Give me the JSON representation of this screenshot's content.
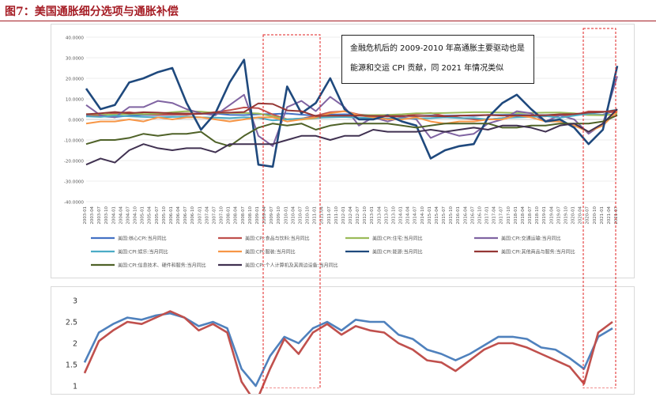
{
  "page_title": "图7：美国通胀细分选项与通胀补偿",
  "annotation": {
    "line1": "金融危机后的 2009-2010 年高通胀主要驱动也是",
    "line2": "能源和交运 CPI 贡献，同 2021 年情况类似"
  },
  "chart_data": [
    {
      "type": "line",
      "y_ticks": [
        "40.0000",
        "30.0000",
        "20.0000",
        "10.0000",
        "0.0000",
        "-10.0000",
        "-20.0000",
        "-30.0000",
        "-40.0000"
      ],
      "ylim": [
        -40,
        40
      ],
      "x_ticks": [
        "2003-01",
        "2003-07",
        "2004-01",
        "2004-07",
        "2005-01",
        "2005-07",
        "2006-01",
        "2006-07",
        "2007-01",
        "2007-07",
        "2008-01",
        "2008-07",
        "2009-01",
        "2009-07",
        "2010-01",
        "2010-07",
        "2011-01",
        "2011-07",
        "2012-01",
        "2012-07",
        "2013-01",
        "2013-07",
        "2014-01",
        "2014-07",
        "2015-01",
        "2015-07",
        "2016-01",
        "2016-07",
        "2017-01",
        "2017-07",
        "2018-01",
        "2018-07",
        "2019-01",
        "2019-07",
        "2020-01",
        "2020-07",
        "2021-01",
        "2021-07"
      ],
      "x_tick_labels": [
        "2003-01",
        "2003-04",
        "2003-07",
        "2003-10",
        "2004-01",
        "2004-04",
        "2004-07",
        "2004-10",
        "2005-01",
        "2005-04",
        "2005-07",
        "2005-10",
        "2006-01",
        "2006-04",
        "2006-07",
        "2006-10",
        "2007-01",
        "2007-04",
        "2007-07",
        "2007-10",
        "2008-01",
        "2008-04",
        "2008-07",
        "2008-10",
        "2009-01",
        "2009-04",
        "2009-07",
        "2009-10",
        "2010-01",
        "2010-04",
        "2010-07",
        "2010-10",
        "2011-01",
        "2011-04",
        "2011-07",
        "2011-10",
        "2012-01",
        "2012-04",
        "2012-07",
        "2012-10",
        "2013-01",
        "2013-04",
        "2013-07",
        "2013-10",
        "2014-01",
        "2014-04",
        "2014-07",
        "2014-10",
        "2015-01",
        "2015-04",
        "2015-07",
        "2015-10",
        "2016-01",
        "2016-04",
        "2016-07",
        "2016-10",
        "2017-01",
        "2017-04",
        "2017-07",
        "2017-10",
        "2018-01",
        "2018-04",
        "2018-07",
        "2018-10",
        "2019-01",
        "2019-04",
        "2019-07",
        "2019-10",
        "2020-01",
        "2020-04",
        "2020-07",
        "2020-10",
        "2021-01",
        "2021-04",
        "2021-07"
      ],
      "highlight_ranges": [
        [
          "2009-01",
          "2010-07"
        ],
        [
          "2020-07",
          "2021-07"
        ]
      ],
      "series": [
        {
          "name": "美国:核心CPI:当月同比",
          "color": "#4472c4",
          "values": [
            1.9,
            1.5,
            1.1,
            1.9,
            2.2,
            2.1,
            2.2,
            2.5,
            2.7,
            2.9,
            2.2,
            2.1,
            2.5,
            2.6,
            2.9,
            2.3,
            1.8,
            2.3,
            2.5,
            2.3,
            2.0,
            1.8,
            1.7,
            1.6,
            1.9,
            1.8,
            1.9,
            1.7,
            2.2,
            2.2,
            2.3,
            2.1,
            2.1,
            2.3,
            2.4,
            2.2,
            2.3,
            4.5
          ]
        },
        {
          "name": "美国:CPI:食品与饮料:当月同比",
          "color": "#c0504d",
          "values": [
            1.5,
            2.0,
            3.0,
            3.5,
            2.6,
            2.3,
            2.4,
            2.3,
            2.8,
            3.6,
            4.5,
            5.8,
            5.5,
            2.4,
            0.1,
            0.4,
            1.8,
            3.5,
            4.0,
            2.4,
            1.6,
            1.4,
            1.4,
            2.6,
            3.1,
            1.6,
            0.8,
            0.0,
            0.0,
            0.6,
            1.3,
            1.4,
            1.5,
            1.9,
            2.0,
            3.9,
            3.8,
            3.4
          ]
        },
        {
          "name": "美国:CPI:住宅:当月同比",
          "color": "#9bbb59",
          "values": [
            2.6,
            2.4,
            2.3,
            2.7,
            2.6,
            2.8,
            3.5,
            4.0,
            3.8,
            3.2,
            3.1,
            3.2,
            2.9,
            1.5,
            0.1,
            -0.1,
            0.6,
            1.3,
            1.7,
            2.0,
            2.1,
            2.2,
            2.5,
            3.0,
            3.0,
            3.1,
            3.3,
            3.5,
            3.5,
            3.3,
            3.1,
            3.2,
            3.3,
            3.4,
            3.0,
            2.1,
            2.0,
            2.6
          ]
        },
        {
          "name": "美国:CPI:交通运输:当月同比",
          "color": "#8064a2",
          "values": [
            7,
            2,
            1,
            6,
            6,
            9,
            8,
            5,
            3,
            2,
            7,
            12,
            -8,
            -13,
            6,
            9,
            4,
            11,
            6,
            -3,
            1,
            -1,
            1,
            0,
            -9,
            -6,
            -8,
            -7,
            -2,
            0,
            4,
            3,
            -1,
            2,
            0,
            -7,
            -2,
            21
          ]
        },
        {
          "name": "美国:CPI:娱乐:当月同比",
          "color": "#4bacc6",
          "values": [
            1.5,
            1.2,
            1.8,
            1.5,
            1.2,
            1.0,
            1.2,
            1.4,
            1.0,
            0.9,
            0.6,
            1.0,
            0.8,
            -0.5,
            0.0,
            0.5,
            0.8,
            1.0,
            1.2,
            0.8,
            0.7,
            0.4,
            0.5,
            0.5,
            0.6,
            1.0,
            0.7,
            0.6,
            0.0,
            0.6,
            1.0,
            1.2,
            1.6,
            0.8,
            1.8,
            2.8,
            3.5,
            4.8
          ]
        },
        {
          "name": "美国:CPI:服装:当月同比",
          "color": "#f79646",
          "values": [
            -2,
            -1,
            -1,
            0,
            -1,
            1,
            0,
            1,
            1,
            0,
            -1,
            0,
            1,
            1,
            -1,
            0,
            1,
            3,
            4,
            2,
            1,
            0,
            0,
            1,
            -1,
            -2,
            -1,
            -1,
            0,
            0,
            2,
            1,
            -1,
            -1,
            -3,
            -6,
            -3,
            4
          ]
        },
        {
          "name": "美国:CPI:能源:当月同比",
          "color": "#1f497d",
          "values": [
            15,
            5,
            7,
            18,
            20,
            23,
            25,
            8,
            -5,
            3,
            18,
            29,
            -22,
            -23,
            16,
            3,
            8,
            20,
            5,
            0,
            0,
            2,
            -1,
            -3,
            -19,
            -15,
            -13,
            -12,
            1,
            8,
            12,
            5,
            -1,
            0,
            -4,
            -12,
            -5,
            26
          ]
        },
        {
          "name": "美国:CPI:其他商品与服务:当月同比",
          "color": "#953735",
          "values": [
            2.5,
            3.0,
            3.6,
            3.0,
            3.5,
            3.3,
            3.0,
            2.9,
            2.8,
            3.4,
            3.3,
            3.6,
            7.8,
            7.5,
            4.4,
            4.0,
            1.6,
            1.8,
            1.8,
            1.8,
            1.7,
            1.6,
            1.7,
            1.7,
            1.6,
            1.5,
            1.8,
            2.0,
            2.1,
            1.9,
            1.9,
            2.0,
            2.0,
            2.5,
            2.6,
            3.3,
            3.6,
            4.5
          ]
        },
        {
          "name": "美国:CPI:信息技术、硬件和服务:当月同比",
          "color": "#4f6228",
          "values": [
            -12,
            -10,
            -10,
            -9,
            -7,
            -8,
            -7,
            -7,
            -6,
            -11,
            -13,
            -8,
            -4,
            -2,
            -3,
            -2,
            -5,
            -3,
            -2,
            -2,
            -2,
            -2,
            -3,
            -4,
            -3,
            -2,
            -2,
            -2,
            -2,
            -4,
            -4,
            -3,
            -3,
            -2,
            -2,
            -2,
            -1,
            2
          ]
        },
        {
          "name": "美国:CPI:个人计算机及其周边设备:当月同比",
          "color": "#403151",
          "values": [
            -22,
            -19,
            -21,
            -15,
            -12,
            -14,
            -15,
            -14,
            -14,
            -16,
            -12,
            -12,
            -12,
            -12,
            -10,
            -8,
            -8,
            -10,
            -8,
            -8,
            -5,
            -6,
            -6,
            -6,
            -5,
            -6,
            -5,
            -4,
            -5,
            -3,
            -3,
            -4,
            -6,
            -3,
            -2,
            -6,
            -2,
            5
          ]
        }
      ]
    },
    {
      "type": "line",
      "y_ticks": [
        "3",
        "2.5",
        "2",
        "1.5",
        "1"
      ],
      "ylim": [
        1,
        3
      ],
      "series": [
        {
          "name": "",
          "color": "#4f81bd",
          "values": [
            1.55,
            2.25,
            2.45,
            2.6,
            2.55,
            2.65,
            2.7,
            2.6,
            2.4,
            2.5,
            2.35,
            1.4,
            1.0,
            1.7,
            2.15,
            2.0,
            2.35,
            2.5,
            2.3,
            2.55,
            2.5,
            2.5,
            2.2,
            2.1,
            1.85,
            1.75,
            1.6,
            1.75,
            1.95,
            2.15,
            2.15,
            2.1,
            1.9,
            1.85,
            1.65,
            1.4,
            2.15,
            2.35
          ]
        },
        {
          "name": "",
          "color": "#c0504d",
          "values": [
            1.3,
            2.05,
            2.3,
            2.5,
            2.45,
            2.6,
            2.75,
            2.6,
            2.3,
            2.45,
            2.25,
            1.1,
            0.6,
            1.4,
            2.1,
            1.75,
            2.25,
            2.45,
            2.2,
            2.4,
            2.3,
            2.25,
            2.0,
            1.85,
            1.6,
            1.55,
            1.35,
            1.6,
            1.85,
            2.0,
            2.0,
            1.9,
            1.75,
            1.6,
            1.45,
            1.05,
            2.25,
            2.5
          ]
        }
      ]
    }
  ]
}
